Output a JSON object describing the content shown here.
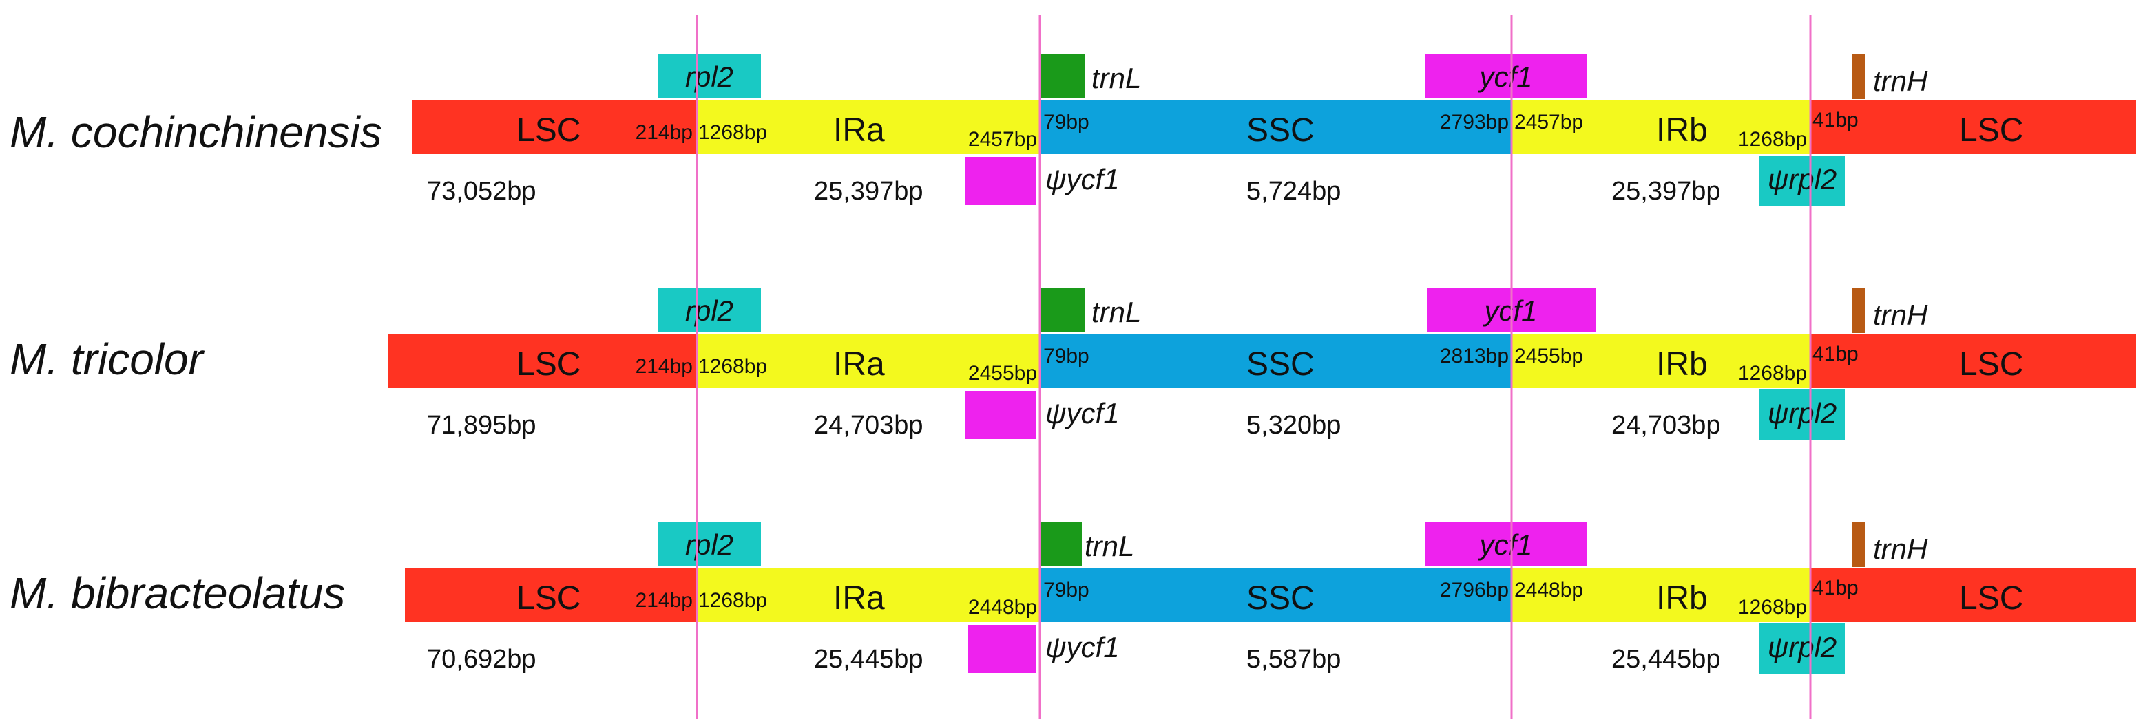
{
  "colors": {
    "lsc": "#ff3322",
    "ir": "#f3f91e",
    "ssc": "#0da2dc",
    "junction": "#f070c8",
    "rpl2": "#19c9c4",
    "trnL": "#1a9a1a",
    "ycf1": "#ee22ee",
    "trnH": "#b85a14"
  },
  "genes": {
    "rpl2": "rpl2",
    "trnL": "trnL",
    "ycf1": "ycf1",
    "trnH": "trnH",
    "psi_ycf1": "ψycf1",
    "psi_rpl2": "ψrpl2"
  },
  "species": [
    {
      "name": "M. cochinchinensis",
      "regions": {
        "lsc_left": "LSC",
        "ira": "IRa",
        "ssc": "SSC",
        "irb": "IRb",
        "lsc_right": "LSC"
      },
      "junctions": {
        "jlb_lsc": "214bp",
        "jlb_ir": "1268bp",
        "jsb_ir": "2457bp",
        "jsb_ssc": "79bp",
        "jsa_ssc": "2793bp",
        "jsa_ir": "2457bp",
        "jla_ir": "1268bp",
        "jla_lsc": "41bp"
      },
      "lengths": {
        "lsc": "73,052bp",
        "ira": "25,397bp",
        "ssc": "5,724bp",
        "irb": "25,397bp"
      }
    },
    {
      "name": "M. tricolor",
      "regions": {
        "lsc_left": "LSC",
        "ira": "IRa",
        "ssc": "SSC",
        "irb": "IRb",
        "lsc_right": "LSC"
      },
      "junctions": {
        "jlb_lsc": "214bp",
        "jlb_ir": "1268bp",
        "jsb_ir": "2455bp",
        "jsb_ssc": "79bp",
        "jsa_ssc": "2813bp",
        "jsa_ir": "2455bp",
        "jla_ir": "1268bp",
        "jla_lsc": "41bp"
      },
      "lengths": {
        "lsc": "71,895bp",
        "ira": "24,703bp",
        "ssc": "5,320bp",
        "irb": "24,703bp"
      }
    },
    {
      "name": "M. bibracteolatus",
      "regions": {
        "lsc_left": "LSC",
        "ira": "IRa",
        "ssc": "SSC",
        "irb": "IRb",
        "lsc_right": "LSC"
      },
      "junctions": {
        "jlb_lsc": "214bp",
        "jlb_ir": "1268bp",
        "jsb_ir": "2448bp",
        "jsb_ssc": "79bp",
        "jsa_ssc": "2796bp",
        "jsa_ir": "2448bp",
        "jla_ir": "1268bp",
        "jla_lsc": "41bp"
      },
      "lengths": {
        "lsc": "70,692bp",
        "ira": "25,445bp",
        "ssc": "5,587bp",
        "irb": "25,445bp"
      }
    }
  ]
}
